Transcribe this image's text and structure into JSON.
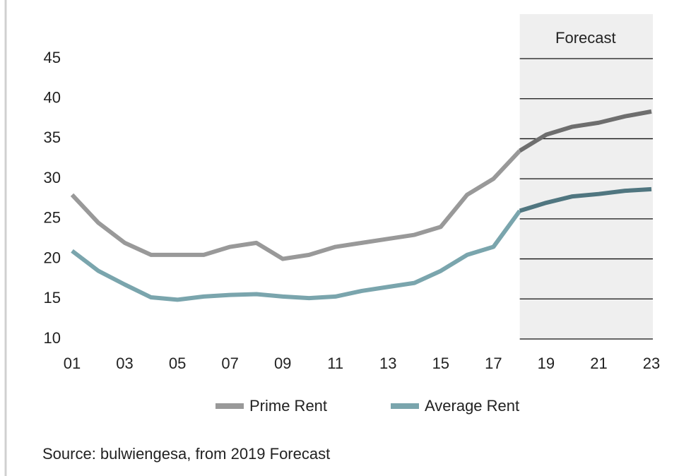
{
  "chart_data": {
    "type": "line",
    "x": [
      1,
      2,
      3,
      4,
      5,
      6,
      7,
      8,
      9,
      10,
      11,
      12,
      13,
      14,
      15,
      16,
      17,
      18,
      19,
      20,
      21,
      22,
      23
    ],
    "xlim": [
      1,
      23
    ],
    "xticks": [
      {
        "value": 1,
        "label": "01"
      },
      {
        "value": 3,
        "label": "03"
      },
      {
        "value": 5,
        "label": "05"
      },
      {
        "value": 7,
        "label": "07"
      },
      {
        "value": 9,
        "label": "09"
      },
      {
        "value": 11,
        "label": "11"
      },
      {
        "value": 13,
        "label": "13"
      },
      {
        "value": 15,
        "label": "15"
      },
      {
        "value": 17,
        "label": "17"
      },
      {
        "value": 19,
        "label": "19"
      },
      {
        "value": 21,
        "label": "21"
      },
      {
        "value": 23,
        "label": "23"
      }
    ],
    "ylim": [
      10,
      45
    ],
    "yticks": [
      10,
      15,
      20,
      25,
      30,
      35,
      40,
      45
    ],
    "forecast_label": "Forecast",
    "forecast_start": 18,
    "series": [
      {
        "name": "Prime Rent",
        "color": "#999999",
        "forecast_color": "#6e6e6e",
        "values": [
          28,
          24.5,
          22,
          20.5,
          20.5,
          20.5,
          21.5,
          22,
          20,
          20.5,
          21.5,
          22,
          22.5,
          23,
          24,
          28,
          30,
          33.5,
          35.5,
          36.5,
          37,
          37.8,
          38.4
        ]
      },
      {
        "name": "Average Rent",
        "color": "#7aa5ad",
        "forecast_color": "#507680",
        "values": [
          21,
          18.5,
          16.8,
          15.2,
          14.9,
          15.3,
          15.5,
          15.6,
          15.3,
          15.1,
          15.3,
          16,
          16.5,
          17,
          18.5,
          20.5,
          21.5,
          26,
          27,
          27.8,
          28.1,
          28.5,
          28.7
        ]
      }
    ],
    "source": "Source: bulwiengesa, from 2019 Forecast"
  }
}
